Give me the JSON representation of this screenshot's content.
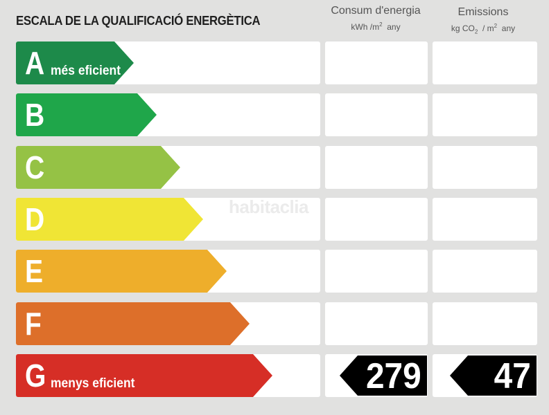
{
  "title": "ESCALA DE LA QUALIFICACIÓ ENERGÈTICA",
  "columns": {
    "consum": {
      "heading": "Consum d'energia",
      "unit_main": "kWh /m",
      "unit_sup": "2",
      "unit_tail": "  any"
    },
    "emissions": {
      "heading": "Emissions",
      "unit_pre": "kg CO",
      "unit_sub": "2",
      "unit_mid": "  / m",
      "unit_sup": "2",
      "unit_tail": "  any"
    }
  },
  "ratings": [
    {
      "letter": "A",
      "caption": "més eficient",
      "color": "#1d8a4a"
    },
    {
      "letter": "B",
      "caption": "",
      "color": "#1fa64a"
    },
    {
      "letter": "C",
      "caption": "",
      "color": "#95c245"
    },
    {
      "letter": "D",
      "caption": "",
      "color": "#f0e535"
    },
    {
      "letter": "E",
      "caption": "",
      "color": "#eeae2b"
    },
    {
      "letter": "F",
      "caption": "",
      "color": "#dd6f2a"
    },
    {
      "letter": "G",
      "caption": "menys eficient",
      "color": "#d62e26"
    }
  ],
  "result": {
    "rating": "G",
    "consum_value": "279",
    "emissions_value": "47",
    "tag_color": "#000000"
  },
  "watermark": "habitaclia"
}
